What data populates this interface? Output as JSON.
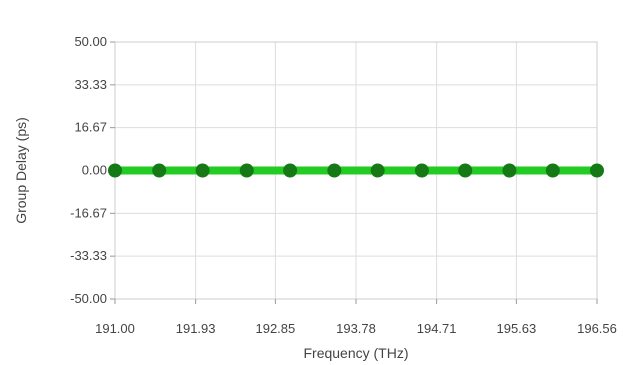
{
  "chart_data": {
    "type": "line",
    "title": "",
    "xlabel": "Frequency (THz)",
    "ylabel": "Group Delay (ps)",
    "xlim": [
      191.0,
      196.56
    ],
    "ylim": [
      -50.0,
      50.0
    ],
    "x_ticks": [
      "191.00",
      "191.93",
      "192.85",
      "193.78",
      "194.71",
      "195.63",
      "196.56"
    ],
    "y_ticks": [
      "50.00",
      "33.33",
      "16.67",
      "0.00",
      "-16.67",
      "-33.33",
      "-50.00"
    ],
    "grid": true,
    "legend": "none",
    "series": [
      {
        "color": "#22cc22",
        "marker_color": "#157a15",
        "x": [
          191.0,
          191.51,
          192.01,
          192.52,
          193.02,
          193.53,
          194.03,
          194.54,
          195.04,
          195.55,
          196.05,
          196.56
        ],
        "y": [
          0,
          0,
          0,
          0,
          0,
          0,
          0,
          0,
          0,
          0,
          0,
          0
        ]
      }
    ]
  }
}
